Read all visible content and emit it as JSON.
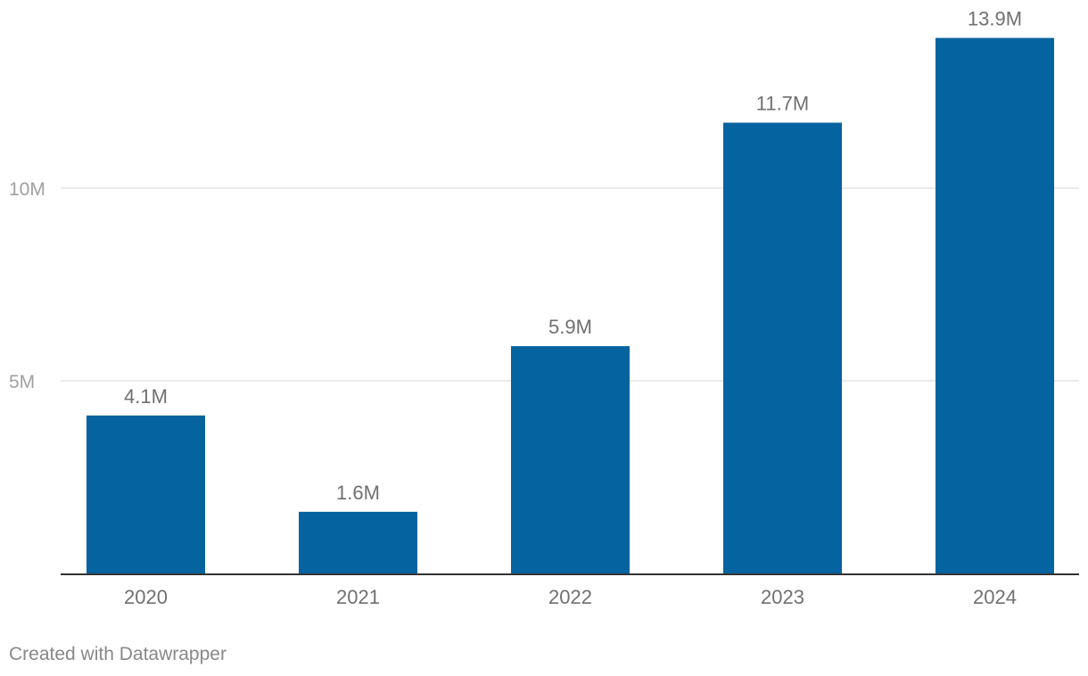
{
  "chart_data": {
    "type": "bar",
    "categories": [
      "2020",
      "2021",
      "2022",
      "2023",
      "2024"
    ],
    "values": [
      4.1,
      1.6,
      5.9,
      11.7,
      13.9
    ],
    "value_labels": [
      "4.1M",
      "1.6M",
      "5.9M",
      "11.7M",
      "13.9M"
    ],
    "title": "",
    "xlabel": "",
    "ylabel": "",
    "ylim": [
      0,
      15
    ],
    "y_ticks": [
      {
        "value": 5,
        "label": "5M"
      },
      {
        "value": 10,
        "label": "10M"
      }
    ],
    "grid": true,
    "colors": {
      "bar": "#05639F",
      "grid": "#E3E3E3",
      "axis": "#333333",
      "tick_label": "#A0A0A0",
      "value_label": "#707070",
      "category_label": "#707070"
    }
  },
  "footer": {
    "credit": "Created with Datawrapper"
  }
}
